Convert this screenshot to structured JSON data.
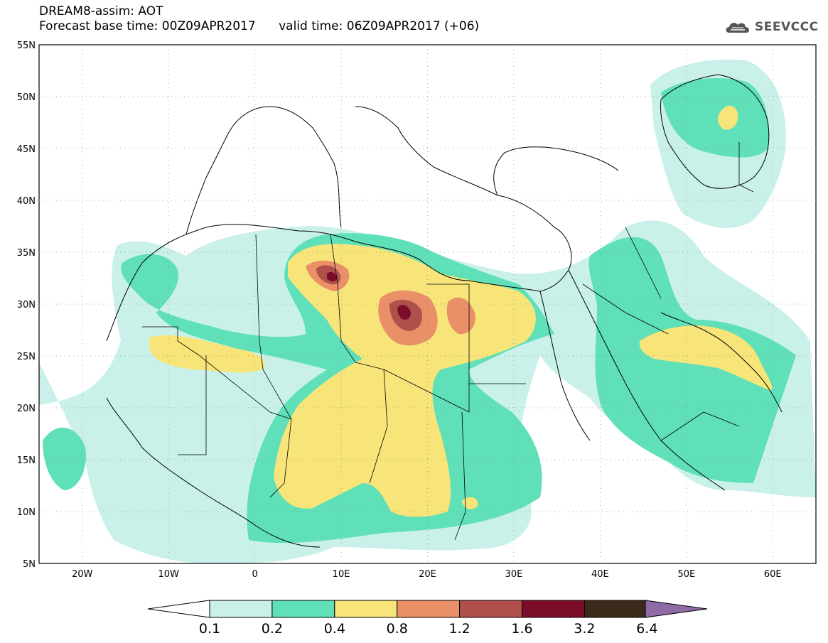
{
  "header": {
    "title": "DREAM8-assim: AOT",
    "base_time_label": "Forecast base time: 00Z09APR2017",
    "valid_time_label": "valid time: 06Z09APR2017 (+06)",
    "logo_text": "SEEVCCC"
  },
  "map": {
    "lon_range": [
      -25,
      65
    ],
    "lat_range": [
      5,
      55
    ],
    "lat_labels": [
      "5N",
      "10N",
      "15N",
      "20N",
      "25N",
      "30N",
      "35N",
      "40N",
      "45N",
      "50N",
      "55N"
    ],
    "lon_labels": [
      "20W",
      "10W",
      "0",
      "10E",
      "20E",
      "30E",
      "40E",
      "50E",
      "60E"
    ],
    "lat_values": [
      5,
      10,
      15,
      20,
      25,
      30,
      35,
      40,
      45,
      50,
      55
    ],
    "lon_values": [
      -20,
      -10,
      0,
      10,
      20,
      30,
      40,
      50,
      60
    ]
  },
  "colorbar": {
    "labels": [
      "0.1",
      "0.2",
      "0.4",
      "0.8",
      "1.2",
      "1.6",
      "3.2",
      "6.4"
    ],
    "colors": [
      "#c9f1ea",
      "#5fe0b8",
      "#f7e579",
      "#ea9068",
      "#b0504a",
      "#7b0d2a",
      "#3b2a1a",
      "#8f6aa6"
    ],
    "over_color": "#8f6aa6",
    "under_color": "#ffffff"
  },
  "colors": {
    "c01": "#c9f1ea",
    "c02": "#5fe0b8",
    "c04": "#f7e579",
    "c08": "#ea9068",
    "c12": "#b0504a",
    "c16": "#7b0d2a"
  }
}
